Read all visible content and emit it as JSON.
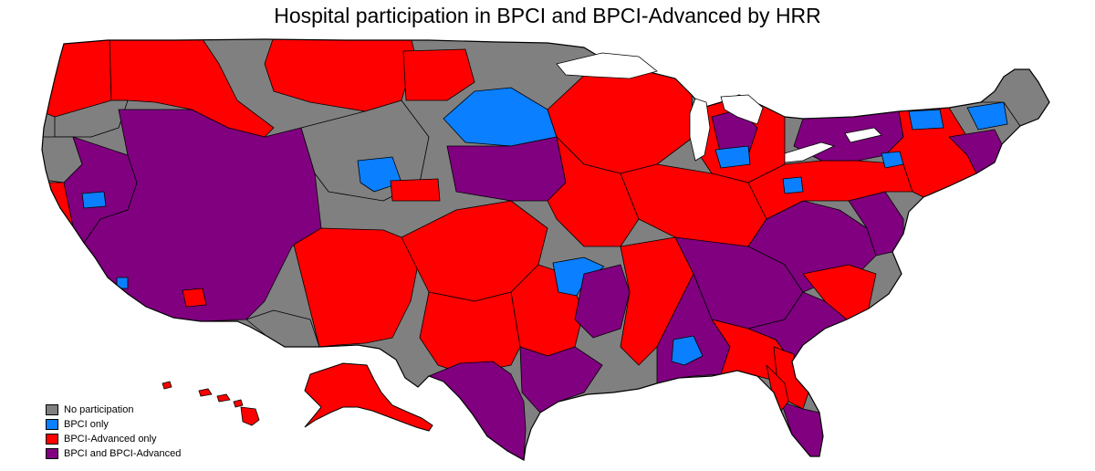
{
  "title": "Hospital participation in BPCI and BPCI-Advanced by HRR",
  "legend": {
    "items": [
      {
        "key": "none",
        "label": "No participation",
        "color": "#808080"
      },
      {
        "key": "bpci",
        "label": "BPCI only",
        "color": "#0a7fff"
      },
      {
        "key": "adv",
        "label": "BPCI-Advanced only",
        "color": "#ff0000"
      },
      {
        "key": "both",
        "label": "BPCI and BPCI-Advanced",
        "color": "#800080"
      }
    ]
  },
  "map": {
    "region_labels": []
  }
}
